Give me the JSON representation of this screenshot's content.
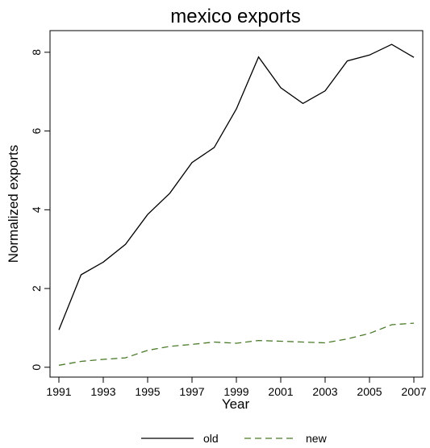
{
  "chart_data": {
    "type": "line",
    "title": "mexico exports",
    "xlabel": "Year",
    "ylabel": "Normalized exports",
    "x": [
      1991,
      1992,
      1993,
      1994,
      1995,
      1996,
      1997,
      1998,
      1999,
      2000,
      2001,
      2002,
      2003,
      2004,
      2005,
      2006,
      2007
    ],
    "x_ticks": [
      "1991",
      "1993",
      "1995",
      "1997",
      "1999",
      "2001",
      "2003",
      "2005",
      "2007"
    ],
    "y_ticks": [
      "0",
      "2",
      "4",
      "6",
      "8"
    ],
    "xlim": [
      1990.6,
      2007.4
    ],
    "ylim": [
      -0.25,
      8.55
    ],
    "grid": false,
    "legend_position": "bottom",
    "series": [
      {
        "name": "old",
        "color": "#000000",
        "dash": "solid",
        "values": [
          0.95,
          2.35,
          2.67,
          3.12,
          3.88,
          4.42,
          5.2,
          5.58,
          6.56,
          7.88,
          7.1,
          6.7,
          7.02,
          7.78,
          7.93,
          8.2,
          7.87
        ]
      },
      {
        "name": "new",
        "color": "#4a7a2a",
        "dash": "dashed",
        "values": [
          0.05,
          0.15,
          0.2,
          0.24,
          0.43,
          0.53,
          0.58,
          0.64,
          0.61,
          0.68,
          0.66,
          0.64,
          0.62,
          0.72,
          0.86,
          1.08,
          1.12
        ]
      }
    ]
  }
}
